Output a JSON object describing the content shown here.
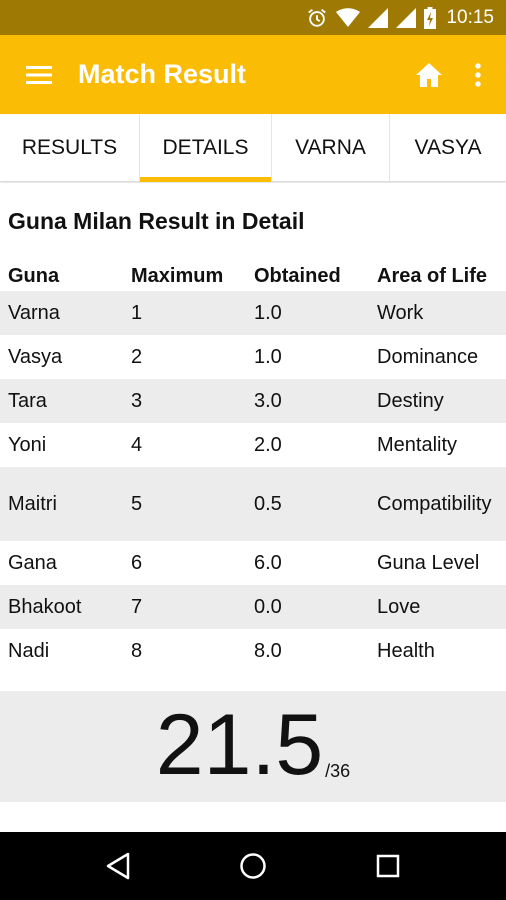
{
  "status_bar": {
    "time": "10:15",
    "icons": [
      "alarm-icon",
      "wifi-icon",
      "signal-icon",
      "roaming-signal-icon",
      "battery-charging-icon"
    ]
  },
  "app_bar": {
    "title": "Match Result",
    "icons": [
      "menu-icon",
      "home-icon",
      "more-vert-icon"
    ],
    "bg_color": "#fbbc05"
  },
  "tabs": [
    {
      "label": "RESULTS",
      "active": false
    },
    {
      "label": "DETAILS",
      "active": true
    },
    {
      "label": "VARNA",
      "active": false
    },
    {
      "label": "VASYA",
      "active": false
    }
  ],
  "details": {
    "title": "Guna Milan Result in Detail",
    "headers": [
      "Guna",
      "Maximum",
      "Obtained",
      "Area of Life"
    ],
    "rows": [
      {
        "guna": "Varna",
        "max": "1",
        "obtained": "1.0",
        "area": "Work"
      },
      {
        "guna": "Vasya",
        "max": "2",
        "obtained": "1.0",
        "area": "Dominance"
      },
      {
        "guna": "Tara",
        "max": "3",
        "obtained": "3.0",
        "area": "Destiny"
      },
      {
        "guna": "Yoni",
        "max": "4",
        "obtained": "2.0",
        "area": "Mentality"
      },
      {
        "guna": "Maitri",
        "max": "5",
        "obtained": "0.5",
        "area": "Compatibility"
      },
      {
        "guna": "Gana",
        "max": "6",
        "obtained": "6.0",
        "area": "Guna Level"
      },
      {
        "guna": "Bhakoot",
        "max": "7",
        "obtained": "0.0",
        "area": "Love"
      },
      {
        "guna": "Nadi",
        "max": "8",
        "obtained": "8.0",
        "area": "Health"
      }
    ]
  },
  "score": {
    "value": "21.5",
    "max": "/36"
  },
  "nav_bar": {
    "icons": [
      "back-icon",
      "home-circle-icon",
      "recents-icon"
    ]
  }
}
